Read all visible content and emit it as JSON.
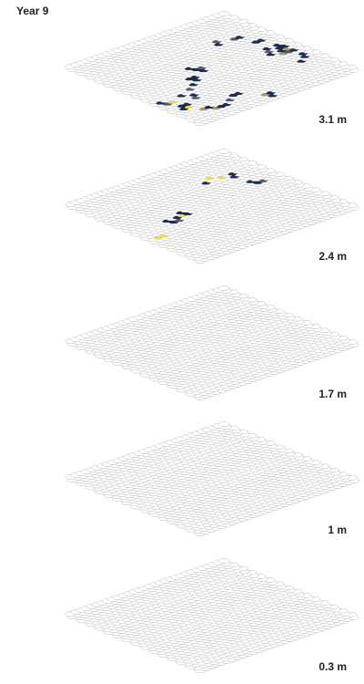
{
  "chart_data": {
    "type": "heatmap",
    "title": "Year 9",
    "subtitle": "",
    "xlabel": "",
    "ylabel": "",
    "grid_cells": [
      30,
      30
    ],
    "grid_style": "hexagonal, isometric view",
    "empty_cell_stroke": "#bbbbbb",
    "palette": {
      "dark": "#1a2b55",
      "mid": "#565a6e",
      "tan": "#a39a72",
      "yellow": "#f0dc4a"
    },
    "layers": [
      {
        "depth_label": "3.1 m",
        "cells": [
          [
            5,
            3,
            "tan"
          ],
          [
            6,
            3,
            "dark"
          ],
          [
            7,
            3,
            "dark"
          ],
          [
            5,
            4,
            "dark"
          ],
          [
            4,
            4,
            "tan"
          ],
          [
            2,
            6,
            "dark"
          ],
          [
            3,
            6,
            "yellow"
          ],
          [
            3,
            7,
            "dark"
          ],
          [
            2,
            7,
            "dark"
          ],
          [
            1,
            9,
            "mid"
          ],
          [
            2,
            9,
            "yellow"
          ],
          [
            1,
            10,
            "dark"
          ],
          [
            6,
            8,
            "mid"
          ],
          [
            6,
            9,
            "dark"
          ],
          [
            5,
            10,
            "dark"
          ],
          [
            7,
            11,
            "mid"
          ],
          [
            9,
            12,
            "dark"
          ],
          [
            10,
            13,
            "dark"
          ],
          [
            10,
            14,
            "dark"
          ],
          [
            11,
            14,
            "dark"
          ],
          [
            13,
            15,
            "dark"
          ],
          [
            12,
            17,
            "dark"
          ],
          [
            14,
            16,
            "mid"
          ],
          [
            13,
            16,
            "dark"
          ],
          [
            9,
            4,
            "mid"
          ],
          [
            10,
            5,
            "dark"
          ],
          [
            11,
            5,
            "dark"
          ],
          [
            14,
            1,
            "dark"
          ],
          [
            14,
            2,
            "tan"
          ],
          [
            15,
            2,
            "dark"
          ],
          [
            26,
            8,
            "dark"
          ],
          [
            27,
            9,
            "dark"
          ],
          [
            28,
            10,
            "dark"
          ],
          [
            26,
            12,
            "tan"
          ],
          [
            27,
            12,
            "mid"
          ],
          [
            28,
            12,
            "dark"
          ],
          [
            26,
            13,
            "dark"
          ],
          [
            27,
            13,
            "tan"
          ],
          [
            27,
            14,
            "dark"
          ],
          [
            28,
            14,
            "dark"
          ],
          [
            27,
            15,
            "dark"
          ],
          [
            24,
            13,
            "dark"
          ],
          [
            25,
            14,
            "mid"
          ],
          [
            25,
            15,
            "dark"
          ],
          [
            26,
            18,
            "dark"
          ],
          [
            27,
            18,
            "dark"
          ],
          [
            25,
            21,
            "dark"
          ],
          [
            24,
            21,
            "mid"
          ],
          [
            21,
            21,
            "dark"
          ],
          [
            22,
            22,
            "mid"
          ]
        ]
      },
      {
        "depth_label": "2.4 m",
        "cells": [
          [
            1,
            11,
            "yellow"
          ],
          [
            2,
            11,
            "yellow"
          ],
          [
            7,
            14,
            "dark"
          ],
          [
            8,
            14,
            "mid"
          ],
          [
            8,
            15,
            "dark"
          ],
          [
            9,
            15,
            "yellow"
          ],
          [
            10,
            15,
            "dark"
          ],
          [
            6,
            15,
            "dark"
          ],
          [
            10,
            16,
            "dark"
          ],
          [
            25,
            17,
            "dark"
          ],
          [
            26,
            17,
            "mid"
          ],
          [
            25,
            18,
            "dark"
          ],
          [
            24,
            21,
            "dark"
          ],
          [
            25,
            22,
            "dark"
          ],
          [
            23,
            22,
            "yellow"
          ],
          [
            20,
            22,
            "dark"
          ],
          [
            21,
            23,
            "yellow"
          ]
        ]
      },
      {
        "depth_label": "1.7 m",
        "cells": []
      },
      {
        "depth_label": "1 m",
        "cells": []
      },
      {
        "depth_label": "0.3 m",
        "cells": []
      }
    ]
  }
}
